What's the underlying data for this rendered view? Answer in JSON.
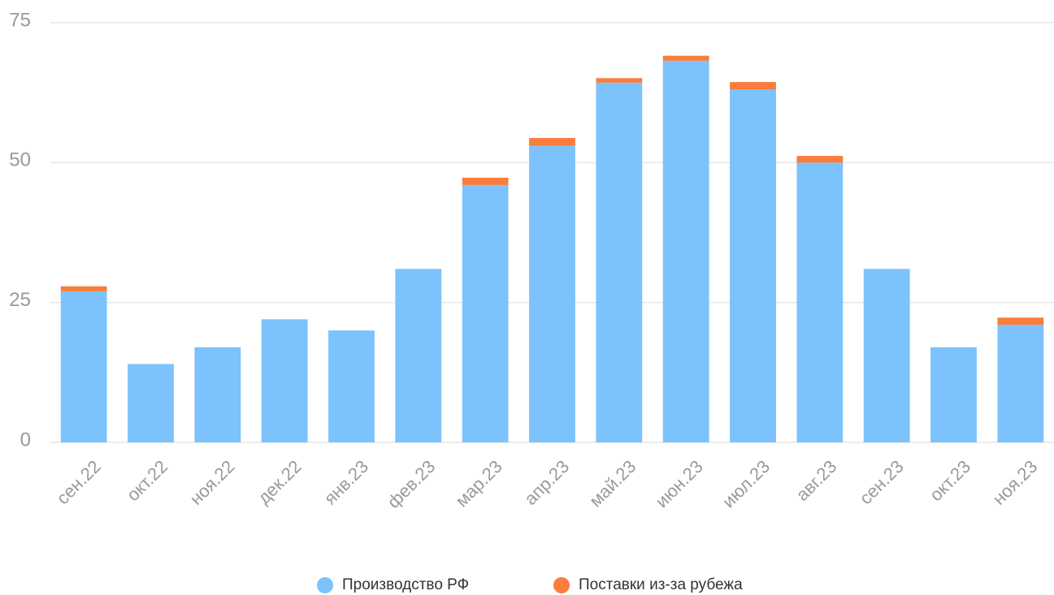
{
  "chart_data": {
    "type": "stacked_bar",
    "categories": [
      "сен.22",
      "окт.22",
      "ноя.22",
      "дек.22",
      "янв.23",
      "фев.23",
      "мар.23",
      "апр.23",
      "май.23",
      "июн.23",
      "июл.23",
      "авг.23",
      "сен.23",
      "окт.23",
      "ноя.23"
    ],
    "series": [
      {
        "name": "Производство РФ",
        "color": "#7cc2fc",
        "values": [
          27,
          14,
          17,
          22,
          20,
          31,
          46,
          53,
          64.3,
          68.2,
          63.1,
          50,
          31,
          17,
          21
        ]
      },
      {
        "name": "Поставки из-за рубежа",
        "color": "#fa7d3c",
        "values": [
          0.9,
          0,
          0,
          0,
          0,
          0,
          1.3,
          1.4,
          0.8,
          0.9,
          1.3,
          1.2,
          0,
          0,
          1.3
        ]
      }
    ],
    "ylim": [
      0,
      75
    ],
    "yticks": [
      0,
      25,
      50,
      75
    ],
    "grid": true,
    "legend": "bottom"
  }
}
